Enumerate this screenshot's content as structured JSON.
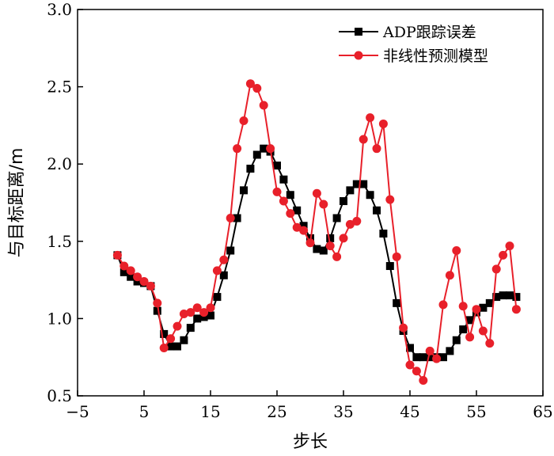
{
  "chart_data": {
    "type": "line",
    "xlabel": "步长",
    "ylabel": "与目标距离/m",
    "xlim": [
      -5,
      65
    ],
    "ylim": [
      0.5,
      3.0
    ],
    "xticks": [
      -5,
      5,
      15,
      25,
      35,
      45,
      55,
      65
    ],
    "xtick_labels": [
      "−5",
      "5",
      "15",
      "25",
      "35",
      "45",
      "55",
      "65"
    ],
    "yticks": [
      0.5,
      1.0,
      1.5,
      2.0,
      2.5,
      3.0
    ],
    "ytick_labels": [
      "0.5",
      "1.0",
      "1.5",
      "2.0",
      "2.5",
      "3.0"
    ],
    "grid": false,
    "legend_position": "top-right",
    "series": [
      {
        "name": "ADP跟踪误差",
        "color": "#000000",
        "marker": "square",
        "x": [
          1,
          2,
          3,
          4,
          5,
          6,
          7,
          8,
          9,
          10,
          11,
          12,
          13,
          14,
          15,
          16,
          17,
          18,
          19,
          20,
          21,
          22,
          23,
          24,
          25,
          26,
          27,
          28,
          29,
          30,
          31,
          32,
          33,
          34,
          35,
          36,
          37,
          38,
          39,
          40,
          41,
          42,
          43,
          44,
          45,
          46,
          47,
          48,
          49,
          50,
          51,
          52,
          53,
          54,
          55,
          56,
          57,
          58,
          59,
          60,
          61
        ],
        "y": [
          1.41,
          1.3,
          1.27,
          1.24,
          1.23,
          1.21,
          1.05,
          0.9,
          0.82,
          0.82,
          0.86,
          0.94,
          1.0,
          1.01,
          1.02,
          1.14,
          1.28,
          1.44,
          1.65,
          1.83,
          1.97,
          2.06,
          2.1,
          2.08,
          1.99,
          1.9,
          1.8,
          1.7,
          1.6,
          1.52,
          1.45,
          1.44,
          1.52,
          1.65,
          1.76,
          1.83,
          1.87,
          1.87,
          1.8,
          1.7,
          1.55,
          1.34,
          1.1,
          0.92,
          0.81,
          0.75,
          0.75,
          0.75,
          0.75,
          0.75,
          0.79,
          0.86,
          0.93,
          0.99,
          1.04,
          1.07,
          1.1,
          1.14,
          1.15,
          1.15,
          1.14
        ]
      },
      {
        "name": "非线性预测模型",
        "color": "#e8202a",
        "marker": "circle",
        "x": [
          1,
          2,
          3,
          4,
          5,
          6,
          7,
          8,
          9,
          10,
          11,
          12,
          13,
          14,
          15,
          16,
          17,
          18,
          19,
          20,
          21,
          22,
          23,
          24,
          25,
          26,
          27,
          28,
          29,
          30,
          31,
          32,
          33,
          34,
          35,
          36,
          37,
          38,
          39,
          40,
          41,
          42,
          43,
          44,
          45,
          46,
          47,
          48,
          49,
          50,
          51,
          52,
          53,
          54,
          55,
          56,
          57,
          58,
          59,
          60,
          61
        ],
        "y": [
          1.41,
          1.34,
          1.31,
          1.27,
          1.24,
          1.21,
          1.1,
          0.81,
          0.87,
          0.95,
          1.03,
          1.04,
          1.07,
          1.04,
          1.07,
          1.31,
          1.38,
          1.65,
          2.1,
          2.28,
          2.52,
          2.49,
          2.38,
          2.1,
          1.82,
          1.76,
          1.68,
          1.59,
          1.57,
          1.49,
          1.81,
          1.74,
          1.47,
          1.4,
          1.52,
          1.61,
          1.63,
          2.16,
          2.3,
          2.1,
          2.26,
          1.77,
          1.4,
          0.94,
          0.7,
          0.66,
          0.6,
          0.79,
          0.74,
          1.09,
          1.28,
          1.44,
          1.08,
          0.88,
          1.06,
          0.92,
          0.84,
          1.32,
          1.41,
          1.47,
          1.06
        ]
      }
    ]
  }
}
